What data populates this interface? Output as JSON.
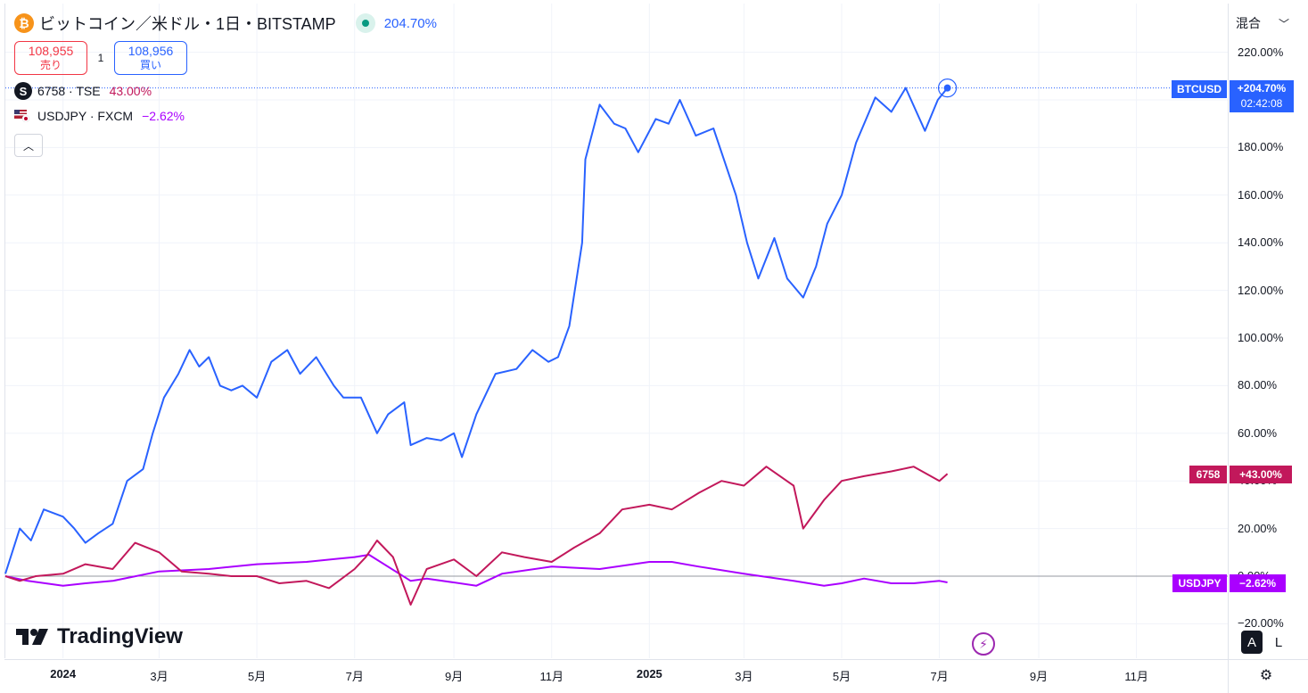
{
  "header": {
    "symbol_title": "ビットコイン／米ドル・1日・BITSTAMP",
    "change_pct": "204.70%",
    "sell_price": "108,955",
    "sell_label": "売り",
    "spread": "1",
    "buy_price": "108,956",
    "buy_label": "買い",
    "coin_icon": "bitcoin-icon",
    "colors": {
      "btc": "#2962ff",
      "sony": "#c2185b",
      "usdjpy": "#aa00ff"
    }
  },
  "comparisons": [
    {
      "symbol": "6758 · TSE",
      "value": "43.00%"
    },
    {
      "symbol": "USDJPY · FXCM",
      "value": "−2.62%"
    }
  ],
  "scale_mode": "混合",
  "price_labels": {
    "btc": {
      "ticker": "BTCUSD",
      "value": "+204.70%",
      "countdown": "02:42:08"
    },
    "sony": {
      "ticker": "6758",
      "value": "+43.00%"
    },
    "usdjpy": {
      "ticker": "USDJPY",
      "value": "−2.62%"
    }
  },
  "brand": "TradingView",
  "controls": {
    "auto": "A",
    "log": "L"
  },
  "chart_data": {
    "type": "line",
    "title": "",
    "xlabel": "",
    "ylabel": "",
    "y_unit": "%",
    "ylim": [
      -20,
      220
    ],
    "y_ticks": [
      "220.00%",
      "200.00%",
      "180.00%",
      "160.00%",
      "140.00%",
      "120.00%",
      "100.00%",
      "80.00%",
      "60.00%",
      "40.00%",
      "20.00%",
      "0.00%",
      "−20.00%"
    ],
    "y_tick_values": [
      220,
      200,
      180,
      160,
      140,
      120,
      100,
      80,
      60,
      40,
      20,
      0,
      -20
    ],
    "x_range": [
      "2023-11-26",
      "2025-12-28"
    ],
    "x_ticks": [
      {
        "label": "2024",
        "date": "2024-01-01",
        "bold": true
      },
      {
        "label": "3月",
        "date": "2024-03-01"
      },
      {
        "label": "5月",
        "date": "2024-05-01"
      },
      {
        "label": "7月",
        "date": "2024-07-01"
      },
      {
        "label": "9月",
        "date": "2024-09-01"
      },
      {
        "label": "11月",
        "date": "2024-11-01"
      },
      {
        "label": "2025",
        "date": "2025-01-01",
        "bold": true
      },
      {
        "label": "3月",
        "date": "2025-03-01"
      },
      {
        "label": "5月",
        "date": "2025-05-01"
      },
      {
        "label": "7月",
        "date": "2025-07-01"
      },
      {
        "label": "9月",
        "date": "2025-09-01"
      },
      {
        "label": "11月",
        "date": "2025-11-01"
      }
    ],
    "grid": true,
    "series": [
      {
        "name": "BTCUSD",
        "color": "#2962ff",
        "x": [
          "2023-11-26",
          "2023-12-05",
          "2023-12-12",
          "2023-12-20",
          "2024-01-01",
          "2024-01-08",
          "2024-01-15",
          "2024-01-23",
          "2024-02-01",
          "2024-02-10",
          "2024-02-20",
          "2024-02-26",
          "2024-03-04",
          "2024-03-13",
          "2024-03-20",
          "2024-03-26",
          "2024-04-01",
          "2024-04-08",
          "2024-04-15",
          "2024-04-22",
          "2024-05-01",
          "2024-05-10",
          "2024-05-20",
          "2024-05-28",
          "2024-06-07",
          "2024-06-18",
          "2024-06-24",
          "2024-07-05",
          "2024-07-15",
          "2024-07-22",
          "2024-08-01",
          "2024-08-05",
          "2024-08-15",
          "2024-08-24",
          "2024-09-01",
          "2024-09-06",
          "2024-09-15",
          "2024-09-27",
          "2024-10-10",
          "2024-10-20",
          "2024-10-30",
          "2024-11-05",
          "2024-11-12",
          "2024-11-20",
          "2024-11-22",
          "2024-12-01",
          "2024-12-10",
          "2024-12-17",
          "2024-12-25",
          "2025-01-05",
          "2025-01-13",
          "2025-01-20",
          "2025-01-30",
          "2025-02-10",
          "2025-02-24",
          "2025-03-03",
          "2025-03-10",
          "2025-03-20",
          "2025-03-28",
          "2025-04-07",
          "2025-04-15",
          "2025-04-22",
          "2025-05-01",
          "2025-05-10",
          "2025-05-22",
          "2025-06-01",
          "2025-06-10",
          "2025-06-22",
          "2025-06-30",
          "2025-07-06"
        ],
        "values": [
          1,
          20,
          15,
          28,
          25,
          20,
          14,
          18,
          22,
          40,
          45,
          60,
          75,
          85,
          95,
          88,
          92,
          80,
          78,
          80,
          75,
          90,
          95,
          85,
          92,
          80,
          75,
          75,
          60,
          68,
          73,
          55,
          58,
          57,
          60,
          50,
          68,
          85,
          87,
          95,
          90,
          92,
          105,
          140,
          175,
          198,
          190,
          188,
          178,
          192,
          190,
          200,
          185,
          188,
          160,
          140,
          125,
          142,
          125,
          117,
          130,
          148,
          160,
          182,
          201,
          195,
          205,
          187,
          200,
          205
        ]
      },
      {
        "name": "6758",
        "color": "#c2185b",
        "x": [
          "2023-11-26",
          "2023-12-05",
          "2023-12-15",
          "2024-01-01",
          "2024-01-15",
          "2024-02-01",
          "2024-02-15",
          "2024-03-01",
          "2024-03-15",
          "2024-04-01",
          "2024-04-15",
          "2024-05-01",
          "2024-05-15",
          "2024-06-01",
          "2024-06-15",
          "2024-07-01",
          "2024-07-08",
          "2024-07-15",
          "2024-07-25",
          "2024-08-05",
          "2024-08-15",
          "2024-09-01",
          "2024-09-15",
          "2024-10-01",
          "2024-10-15",
          "2024-11-01",
          "2024-11-15",
          "2024-12-01",
          "2024-12-15",
          "2025-01-01",
          "2025-01-15",
          "2025-02-01",
          "2025-02-15",
          "2025-03-01",
          "2025-03-15",
          "2025-04-01",
          "2025-04-07",
          "2025-04-20",
          "2025-05-01",
          "2025-05-15",
          "2025-06-01",
          "2025-06-15",
          "2025-07-01",
          "2025-07-06"
        ],
        "values": [
          0,
          -2,
          0,
          1,
          5,
          3,
          14,
          10,
          2,
          1,
          0,
          0,
          -3,
          -2,
          -5,
          3,
          8,
          15,
          8,
          -12,
          3,
          7,
          0,
          10,
          8,
          6,
          12,
          18,
          28,
          30,
          28,
          35,
          40,
          38,
          46,
          38,
          20,
          32,
          40,
          42,
          44,
          46,
          40,
          43
        ]
      },
      {
        "name": "USDJPY",
        "color": "#aa00ff",
        "x": [
          "2023-11-26",
          "2023-12-10",
          "2024-01-01",
          "2024-01-15",
          "2024-02-01",
          "2024-03-01",
          "2024-04-01",
          "2024-05-01",
          "2024-06-01",
          "2024-07-01",
          "2024-07-10",
          "2024-08-05",
          "2024-08-15",
          "2024-09-15",
          "2024-10-01",
          "2024-11-01",
          "2024-12-01",
          "2025-01-01",
          "2025-01-15",
          "2025-02-01",
          "2025-03-01",
          "2025-04-01",
          "2025-04-20",
          "2025-05-01",
          "2025-05-15",
          "2025-06-01",
          "2025-06-15",
          "2025-07-01",
          "2025-07-06"
        ],
        "values": [
          0,
          -2,
          -4,
          -3,
          -2,
          2,
          3,
          5,
          6,
          8,
          9,
          -2,
          -1,
          -4,
          1,
          4,
          3,
          6,
          6,
          4,
          1,
          -2,
          -4,
          -3,
          -1,
          -3,
          -3,
          -2,
          -2.62
        ]
      }
    ]
  }
}
